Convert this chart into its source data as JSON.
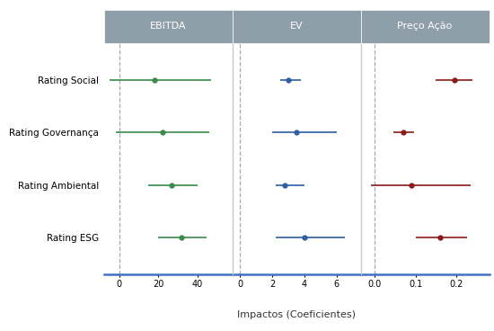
{
  "xlabel": "Impactos (Coeficientes)",
  "panel_labels": [
    "EBITDA",
    "EV",
    "Preço Ação"
  ],
  "y_labels": [
    "Rating Social",
    "Rating Governança",
    "Rating Ambiental",
    "Rating ESG"
  ],
  "header_color": "#8e9faa",
  "header_text_color": "#ffffff",
  "background_color": "#ffffff",
  "panel_bg_color": "#ffffff",
  "ebitda": {
    "color": "#3a8a4a",
    "xlim": [
      -8,
      58
    ],
    "xticks": [
      0,
      20,
      40
    ],
    "zero": 0,
    "points": [
      18,
      22,
      27,
      32
    ],
    "lo": [
      -5,
      -2,
      15,
      20
    ],
    "hi": [
      47,
      46,
      40,
      45
    ]
  },
  "ev": {
    "color": "#2e5fa3",
    "xlim": [
      -0.5,
      7.5
    ],
    "xticks": [
      0,
      2,
      4,
      6
    ],
    "zero": 0,
    "points": [
      3.0,
      3.5,
      2.8,
      4.0
    ],
    "lo": [
      2.5,
      2.0,
      2.2,
      2.2
    ],
    "hi": [
      3.8,
      6.0,
      4.0,
      6.5
    ]
  },
  "preco": {
    "color": "#8b1a1a",
    "xlim": [
      -0.035,
      0.28
    ],
    "xticks": [
      0.0,
      0.1,
      0.2
    ],
    "zero": 0.0,
    "points": [
      0.195,
      0.07,
      0.09,
      0.16
    ],
    "lo": [
      0.15,
      0.045,
      -0.01,
      0.1
    ],
    "hi": [
      0.24,
      0.095,
      0.235,
      0.225
    ]
  }
}
